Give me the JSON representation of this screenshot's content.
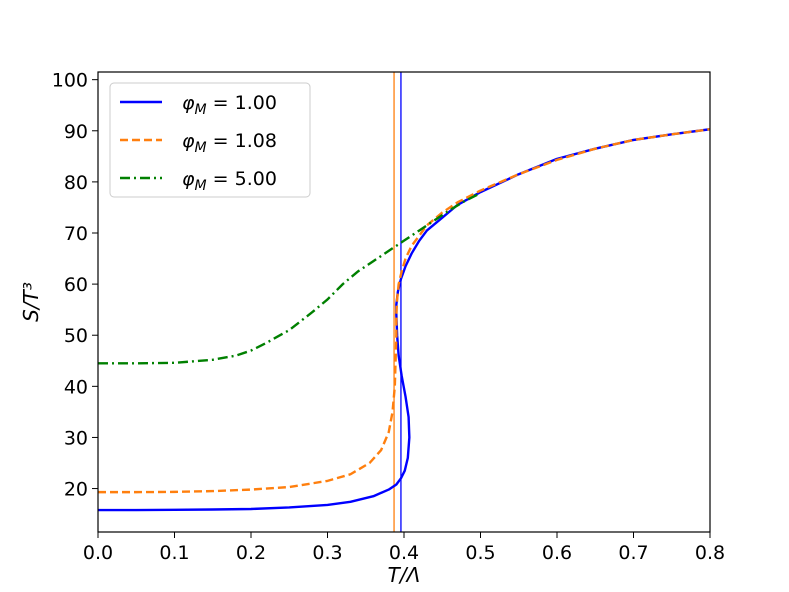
{
  "chart_data": {
    "type": "line",
    "title": "",
    "xlabel": "T/Λ",
    "ylabel": "S/T³",
    "xlim": [
      0.0,
      0.8
    ],
    "ylim": [
      11.5,
      101.5
    ],
    "xticks": [
      "0.0",
      "0.1",
      "0.2",
      "0.3",
      "0.4",
      "0.5",
      "0.6",
      "0.7",
      "0.8"
    ],
    "yticks": [
      "20",
      "30",
      "40",
      "50",
      "60",
      "70",
      "80",
      "90",
      "100"
    ],
    "grid": false,
    "legend_position": "top-left",
    "series": [
      {
        "name": "φ_M = 1.00",
        "legend_main": "φ",
        "legend_sub": "M",
        "legend_rest": " = 1.00",
        "color": "#0000ff",
        "style": "solid",
        "x": [
          0.0,
          0.05,
          0.1,
          0.15,
          0.2,
          0.25,
          0.3,
          0.33,
          0.36,
          0.38,
          0.39,
          0.396,
          0.401,
          0.405,
          0.407,
          0.406,
          0.402,
          0.397,
          0.393,
          0.391,
          0.39,
          0.39,
          0.392,
          0.396,
          0.402,
          0.41,
          0.42,
          0.43,
          0.45,
          0.47,
          0.5,
          0.55,
          0.6,
          0.65,
          0.7,
          0.75,
          0.8
        ],
        "y": [
          15.8,
          15.8,
          15.85,
          15.9,
          16.0,
          16.3,
          16.8,
          17.4,
          18.5,
          19.8,
          20.8,
          22.0,
          23.5,
          26.0,
          30.0,
          34.0,
          38.0,
          42.0,
          46.0,
          50.0,
          54.0,
          56.0,
          58.5,
          61.0,
          63.5,
          66.0,
          68.5,
          70.5,
          73.0,
          75.5,
          78.0,
          81.5,
          84.5,
          86.5,
          88.2,
          89.3,
          90.3
        ]
      },
      {
        "name": "φ_M = 1.08",
        "legend_main": "φ",
        "legend_sub": "M",
        "legend_rest": " = 1.08",
        "color": "#ff7f0e",
        "style": "dashed",
        "x": [
          0.0,
          0.05,
          0.1,
          0.15,
          0.2,
          0.25,
          0.3,
          0.33,
          0.355,
          0.37,
          0.38,
          0.385,
          0.388,
          0.389,
          0.39,
          0.39,
          0.391,
          0.393,
          0.397,
          0.402,
          0.41,
          0.42,
          0.43,
          0.45,
          0.47,
          0.5,
          0.55,
          0.6,
          0.65,
          0.7,
          0.75,
          0.8
        ],
        "y": [
          19.3,
          19.3,
          19.35,
          19.5,
          19.8,
          20.3,
          21.5,
          22.8,
          25.0,
          27.5,
          31.0,
          35.0,
          40.0,
          45.0,
          50.0,
          54.0,
          57.0,
          60.0,
          62.5,
          65.0,
          67.5,
          69.5,
          71.5,
          74.0,
          76.0,
          78.3,
          81.5,
          84.3,
          86.5,
          88.2,
          89.3,
          90.3
        ]
      },
      {
        "name": "φ_M = 5.00",
        "legend_main": "φ",
        "legend_sub": "M",
        "legend_rest": " = 5.00",
        "color": "#008000",
        "style": "dashdot",
        "x": [
          0.0,
          0.05,
          0.1,
          0.15,
          0.18,
          0.2,
          0.22,
          0.25,
          0.28,
          0.3,
          0.32,
          0.34,
          0.36,
          0.38,
          0.4,
          0.42,
          0.44,
          0.46,
          0.48,
          0.5
        ],
        "y": [
          44.5,
          44.5,
          44.6,
          45.2,
          46.0,
          47.0,
          48.5,
          51.0,
          54.5,
          57.0,
          60.0,
          62.5,
          64.5,
          66.5,
          68.5,
          70.5,
          72.5,
          74.5,
          76.3,
          77.8
        ]
      }
    ],
    "vertical_lines": [
      {
        "x": 0.387,
        "color": "#ff7f0e"
      },
      {
        "x": 0.396,
        "color": "#0000ff"
      }
    ]
  }
}
